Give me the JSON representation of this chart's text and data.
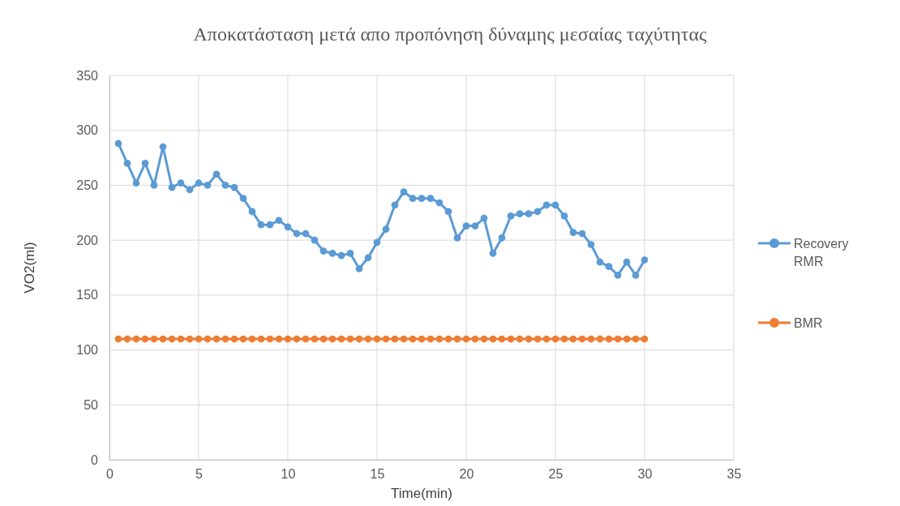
{
  "chart_data": {
    "type": "line",
    "title": "Αποκατάσταση μετά απο προπόνηση δύναμης μεσαίας ταχύτητας",
    "xlabel": "Time(min)",
    "ylabel": "VO2(ml)",
    "x": [
      0.5,
      1,
      1.5,
      2,
      2.5,
      3,
      3.5,
      4,
      4.5,
      5,
      5.5,
      6,
      6.5,
      7,
      7.5,
      8,
      8.5,
      9,
      9.5,
      10,
      10.5,
      11,
      11.5,
      12,
      12.5,
      13,
      13.5,
      14,
      14.5,
      15,
      15.5,
      16,
      16.5,
      17,
      17.5,
      18,
      18.5,
      19,
      19.5,
      20,
      20.5,
      21,
      21.5,
      22,
      22.5,
      23,
      23.5,
      24,
      24.5,
      25,
      25.5,
      26,
      26.5,
      27,
      27.5,
      28,
      28.5,
      29,
      29.5,
      30
    ],
    "series": [
      {
        "name": "Recovery RMR",
        "color": "#5b9bd5",
        "values": [
          288,
          270,
          252,
          270,
          250,
          285,
          248,
          252,
          246,
          252,
          250,
          260,
          250,
          248,
          238,
          226,
          214,
          214,
          218,
          212,
          206,
          206,
          200,
          190,
          188,
          186,
          188,
          174,
          184,
          198,
          210,
          232,
          244,
          238,
          238,
          238,
          234,
          226,
          202,
          213,
          213,
          220,
          188,
          202,
          222,
          224,
          224,
          226,
          232,
          232,
          222,
          207,
          206,
          196,
          180,
          176,
          168,
          180,
          168,
          182
        ]
      },
      {
        "name": "BMR",
        "color": "#ed7d31",
        "values": [
          110,
          110,
          110,
          110,
          110,
          110,
          110,
          110,
          110,
          110,
          110,
          110,
          110,
          110,
          110,
          110,
          110,
          110,
          110,
          110,
          110,
          110,
          110,
          110,
          110,
          110,
          110,
          110,
          110,
          110,
          110,
          110,
          110,
          110,
          110,
          110,
          110,
          110,
          110,
          110,
          110,
          110,
          110,
          110,
          110,
          110,
          110,
          110,
          110,
          110,
          110,
          110,
          110,
          110,
          110,
          110,
          110,
          110,
          110,
          110
        ]
      }
    ],
    "xlim": [
      0,
      35
    ],
    "xticks": [
      0,
      5,
      10,
      15,
      20,
      25,
      30,
      35
    ],
    "ylim": [
      0,
      350
    ],
    "yticks": [
      0,
      50,
      100,
      150,
      200,
      250,
      300,
      350
    ],
    "grid": true,
    "legend": "right",
    "marker": "circle",
    "line_style": "solid"
  }
}
